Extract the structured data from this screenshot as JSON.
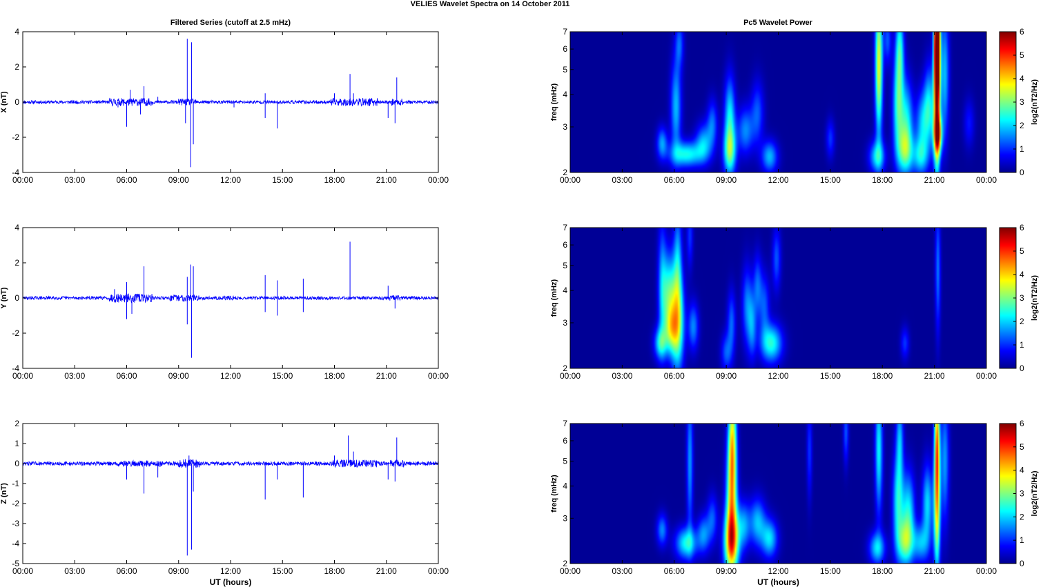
{
  "figure": {
    "title": "VELIES Wavelet Spectra on 14 October   2011",
    "left_column_title": "Filtered Series (cutoff at 2.5 mHz)",
    "right_column_title": "Pc5 Wavelet Power"
  },
  "colors": {
    "trace": "#0000ff",
    "spectrum_background": "#00008f",
    "axis": "#000000",
    "colormap": [
      "#00008f",
      "#0000ff",
      "#0080ff",
      "#00ffff",
      "#80ff80",
      "#ffff00",
      "#ff8000",
      "#ff0000",
      "#800000"
    ]
  },
  "chart_data": [
    {
      "type": "line",
      "panel": "series-x",
      "series": [
        {
          "values": [],
          "note_keys": "spikes"
        }
      ],
      "ylabel": "X (nT)",
      "xlabel": "",
      "xlim_hours": [
        0,
        24
      ],
      "ylim": [
        -4,
        4
      ],
      "xticks": [
        "00:00",
        "03:00",
        "06:00",
        "09:00",
        "12:00",
        "15:00",
        "18:00",
        "21:00",
        "00:00"
      ],
      "yticks": [
        "-4",
        "-2",
        "0",
        "2",
        "4"
      ],
      "ytick_values": [
        -4,
        -2,
        0,
        2,
        4
      ],
      "noise_amplitude": 0.06,
      "active_intervals": [
        [
          5.0,
          7.5,
          0.14
        ],
        [
          9.0,
          10.0,
          0.12
        ],
        [
          17.8,
          20.5,
          0.14
        ],
        [
          21.3,
          22.0,
          0.12
        ]
      ],
      "spikes": [
        {
          "t": 5.5,
          "v": -0.3
        },
        {
          "t": 6.0,
          "v": -1.4
        },
        {
          "t": 6.2,
          "v": 0.7
        },
        {
          "t": 6.8,
          "v": -0.7
        },
        {
          "t": 7.0,
          "v": 0.9
        },
        {
          "t": 7.8,
          "v": 0.3
        },
        {
          "t": 9.4,
          "v": -1.2
        },
        {
          "t": 9.5,
          "v": 3.6
        },
        {
          "t": 9.7,
          "v": -3.7
        },
        {
          "t": 9.75,
          "v": 3.4
        },
        {
          "t": 9.85,
          "v": -2.4
        },
        {
          "t": 12.2,
          "v": -0.3
        },
        {
          "t": 14.0,
          "v": 0.5
        },
        {
          "t": 14.0,
          "v": -0.9
        },
        {
          "t": 14.7,
          "v": -1.5
        },
        {
          "t": 18.0,
          "v": 0.5
        },
        {
          "t": 18.9,
          "v": 1.6
        },
        {
          "t": 19.1,
          "v": 0.5
        },
        {
          "t": 21.1,
          "v": -0.9
        },
        {
          "t": 21.6,
          "v": 1.4
        },
        {
          "t": 21.5,
          "v": -1.2
        }
      ]
    },
    {
      "type": "line",
      "panel": "series-y",
      "series": [
        {
          "values": []
        }
      ],
      "ylabel": "Y (nT)",
      "xlabel": "",
      "xlim_hours": [
        0,
        24
      ],
      "ylim": [
        -4,
        4
      ],
      "xticks": [
        "00:00",
        "03:00",
        "06:00",
        "09:00",
        "12:00",
        "15:00",
        "18:00",
        "21:00",
        "00:00"
      ],
      "yticks": [
        "-4",
        "-2",
        "0",
        "2",
        "4"
      ],
      "ytick_values": [
        -4,
        -2,
        0,
        2,
        4
      ],
      "noise_amplitude": 0.06,
      "active_intervals": [
        [
          5.0,
          7.5,
          0.16
        ],
        [
          8.5,
          10.2,
          0.12
        ],
        [
          11.5,
          12.4,
          0.08
        ],
        [
          21.2,
          21.8,
          0.1
        ]
      ],
      "spikes": [
        {
          "t": 5.3,
          "v": 0.5
        },
        {
          "t": 6.0,
          "v": 0.9
        },
        {
          "t": 6.0,
          "v": -1.2
        },
        {
          "t": 6.3,
          "v": -0.9
        },
        {
          "t": 7.0,
          "v": 1.8
        },
        {
          "t": 9.5,
          "v": 1.2
        },
        {
          "t": 9.5,
          "v": -1.5
        },
        {
          "t": 9.7,
          "v": 1.9
        },
        {
          "t": 9.75,
          "v": -3.4
        },
        {
          "t": 9.85,
          "v": 1.8
        },
        {
          "t": 14.0,
          "v": 1.3
        },
        {
          "t": 14.0,
          "v": -0.8
        },
        {
          "t": 14.7,
          "v": 1.0
        },
        {
          "t": 14.7,
          "v": -1.0
        },
        {
          "t": 16.2,
          "v": 1.1
        },
        {
          "t": 16.2,
          "v": -0.8
        },
        {
          "t": 18.9,
          "v": 3.2
        },
        {
          "t": 21.1,
          "v": 0.7
        },
        {
          "t": 21.5,
          "v": -0.6
        }
      ]
    },
    {
      "type": "line",
      "panel": "series-z",
      "series": [
        {
          "values": []
        }
      ],
      "ylabel": "Z (nT)",
      "xlabel": "UT (hours)",
      "xlim_hours": [
        0,
        24
      ],
      "ylim": [
        -5,
        2
      ],
      "xticks": [
        "00:00",
        "03:00",
        "06:00",
        "09:00",
        "12:00",
        "15:00",
        "18:00",
        "21:00",
        "00:00"
      ],
      "yticks": [
        "-5",
        "-4",
        "-3",
        "-2",
        "-1",
        "0",
        "1",
        "2"
      ],
      "ytick_values": [
        -5,
        -4,
        -3,
        -2,
        -1,
        0,
        1,
        2
      ],
      "noise_amplitude": 0.06,
      "active_intervals": [
        [
          5.5,
          8.0,
          0.1
        ],
        [
          9.0,
          10.2,
          0.14
        ],
        [
          17.8,
          20.5,
          0.12
        ],
        [
          21.2,
          22.0,
          0.12
        ]
      ],
      "spikes": [
        {
          "t": 6.0,
          "v": -0.8
        },
        {
          "t": 7.0,
          "v": -1.5
        },
        {
          "t": 7.8,
          "v": -0.7
        },
        {
          "t": 9.5,
          "v": -4.6
        },
        {
          "t": 9.6,
          "v": 0.4
        },
        {
          "t": 9.75,
          "v": -4.3
        },
        {
          "t": 9.85,
          "v": -1.4
        },
        {
          "t": 14.0,
          "v": -1.8
        },
        {
          "t": 14.7,
          "v": -0.8
        },
        {
          "t": 16.2,
          "v": -1.7
        },
        {
          "t": 18.0,
          "v": 0.4
        },
        {
          "t": 18.8,
          "v": 1.4
        },
        {
          "t": 19.1,
          "v": 0.6
        },
        {
          "t": 21.1,
          "v": -0.8
        },
        {
          "t": 21.6,
          "v": 1.3
        },
        {
          "t": 21.5,
          "v": -0.9
        }
      ]
    },
    {
      "type": "heatmap",
      "panel": "spectrum-x",
      "ylabel": "freq (mHz)",
      "xlabel": "",
      "colorbar_label": "log2(nT2/Hz)",
      "colorbar_ticks": [
        "0",
        "1",
        "2",
        "3",
        "4",
        "5",
        "6"
      ],
      "clim": [
        0,
        6
      ],
      "xlim_hours": [
        0,
        24
      ],
      "ylim_mHz": [
        2,
        7
      ],
      "yscale": "log",
      "xticks": [
        "00:00",
        "03:00",
        "06:00",
        "09:00",
        "12:00",
        "15:00",
        "18:00",
        "21:00",
        "00:00"
      ],
      "yticks": [
        "2",
        "3",
        "4",
        "5",
        "6",
        "7"
      ],
      "ytick_values": [
        2,
        3,
        4,
        5,
        6,
        7
      ],
      "blobs": [
        {
          "t": 5.3,
          "f": 2.6,
          "v": 1.6,
          "dt": 0.1,
          "df": 0.1
        },
        {
          "t": 6.1,
          "f": 3.6,
          "v": 1.8,
          "dt": 0.1,
          "df": 0.3
        },
        {
          "t": 6.3,
          "f": 6.3,
          "v": 1.2,
          "dt": 0.08,
          "df": 0.15
        },
        {
          "t": 6.7,
          "f": 2.35,
          "v": 2.3,
          "dt": 0.3,
          "df": 0.08
        },
        {
          "t": 7.7,
          "f": 2.6,
          "v": 1.7,
          "dt": 0.15,
          "df": 0.12
        },
        {
          "t": 8.2,
          "f": 3.1,
          "v": 1.3,
          "dt": 0.1,
          "df": 0.15
        },
        {
          "t": 9.2,
          "f": 2.4,
          "v": 2.4,
          "dt": 0.12,
          "df": 0.15
        },
        {
          "t": 9.2,
          "f": 3.3,
          "v": 2.1,
          "dt": 0.1,
          "df": 0.25
        },
        {
          "t": 10.1,
          "f": 2.9,
          "v": 1.5,
          "dt": 0.15,
          "df": 0.15
        },
        {
          "t": 10.8,
          "f": 3.4,
          "v": 1.2,
          "dt": 0.12,
          "df": 0.2
        },
        {
          "t": 11.5,
          "f": 2.3,
          "v": 1.8,
          "dt": 0.15,
          "df": 0.1
        },
        {
          "t": 15.0,
          "f": 2.7,
          "v": 1.0,
          "dt": 0.08,
          "df": 0.12
        },
        {
          "t": 17.7,
          "f": 2.3,
          "v": 2.0,
          "dt": 0.15,
          "df": 0.1
        },
        {
          "t": 17.8,
          "f": 5.2,
          "v": 3.6,
          "dt": 0.07,
          "df": 0.45
        },
        {
          "t": 18.3,
          "f": 6.5,
          "v": 1.2,
          "dt": 0.07,
          "df": 0.15
        },
        {
          "t": 18.9,
          "f": 3.6,
          "v": 2.3,
          "dt": 0.1,
          "df": 0.3
        },
        {
          "t": 19.0,
          "f": 6.0,
          "v": 2.2,
          "dt": 0.08,
          "df": 0.25
        },
        {
          "t": 19.3,
          "f": 2.4,
          "v": 2.2,
          "dt": 0.15,
          "df": 0.15
        },
        {
          "t": 19.4,
          "f": 3.2,
          "v": 2.0,
          "dt": 0.12,
          "df": 0.25
        },
        {
          "t": 20.2,
          "f": 2.3,
          "v": 1.8,
          "dt": 0.15,
          "df": 0.12
        },
        {
          "t": 20.3,
          "f": 3.1,
          "v": 1.7,
          "dt": 0.12,
          "df": 0.2
        },
        {
          "t": 20.7,
          "f": 3.6,
          "v": 2.0,
          "dt": 0.1,
          "df": 0.25
        },
        {
          "t": 21.15,
          "f": 4.4,
          "v": 5.2,
          "dt": 0.06,
          "df": 0.55
        },
        {
          "t": 21.15,
          "f": 6.5,
          "v": 5.8,
          "dt": 0.05,
          "df": 0.3
        },
        {
          "t": 21.2,
          "f": 2.8,
          "v": 3.4,
          "dt": 0.08,
          "df": 0.12
        },
        {
          "t": 21.6,
          "f": 4.8,
          "v": 1.8,
          "dt": 0.08,
          "df": 0.4
        },
        {
          "t": 23.0,
          "f": 3.1,
          "v": 0.8,
          "dt": 0.1,
          "df": 0.15
        }
      ]
    },
    {
      "type": "heatmap",
      "panel": "spectrum-y",
      "ylabel": "freq (mHz)",
      "xlabel": "",
      "colorbar_label": "log2(nT2/Hz)",
      "colorbar_ticks": [
        "0",
        "1",
        "2",
        "3",
        "4",
        "5",
        "6"
      ],
      "clim": [
        0,
        6
      ],
      "xlim_hours": [
        0,
        24
      ],
      "ylim_mHz": [
        2,
        7
      ],
      "yscale": "log",
      "xticks": [
        "00:00",
        "03:00",
        "06:00",
        "09:00",
        "12:00",
        "15:00",
        "18:00",
        "21:00",
        "00:00"
      ],
      "yticks": [
        "2",
        "3",
        "4",
        "5",
        "6",
        "7"
      ],
      "ytick_values": [
        2,
        3,
        4,
        5,
        6,
        7
      ],
      "blobs": [
        {
          "t": 5.2,
          "f": 2.5,
          "v": 2.0,
          "dt": 0.12,
          "df": 0.1
        },
        {
          "t": 5.3,
          "f": 4.2,
          "v": 1.5,
          "dt": 0.08,
          "df": 0.4
        },
        {
          "t": 5.7,
          "f": 3.9,
          "v": 2.4,
          "dt": 0.12,
          "df": 0.25
        },
        {
          "t": 5.8,
          "f": 2.8,
          "v": 2.0,
          "dt": 0.12,
          "df": 0.15
        },
        {
          "t": 6.2,
          "f": 3.0,
          "v": 3.0,
          "dt": 0.12,
          "df": 0.3
        },
        {
          "t": 6.2,
          "f": 5.2,
          "v": 1.6,
          "dt": 0.08,
          "df": 0.35
        },
        {
          "t": 6.9,
          "f": 6.5,
          "v": 1.0,
          "dt": 0.06,
          "df": 0.2
        },
        {
          "t": 7.1,
          "f": 2.9,
          "v": 1.5,
          "dt": 0.1,
          "df": 0.15
        },
        {
          "t": 9.0,
          "f": 2.3,
          "v": 1.2,
          "dt": 0.1,
          "df": 0.12
        },
        {
          "t": 9.3,
          "f": 3.0,
          "v": 1.3,
          "dt": 0.08,
          "df": 0.2
        },
        {
          "t": 10.2,
          "f": 3.5,
          "v": 1.4,
          "dt": 0.1,
          "df": 0.25
        },
        {
          "t": 10.5,
          "f": 2.9,
          "v": 1.3,
          "dt": 0.08,
          "df": 0.2
        },
        {
          "t": 10.8,
          "f": 4.2,
          "v": 1.2,
          "dt": 0.08,
          "df": 0.2
        },
        {
          "t": 11.2,
          "f": 3.5,
          "v": 1.2,
          "dt": 0.1,
          "df": 0.2
        },
        {
          "t": 11.6,
          "f": 2.5,
          "v": 2.4,
          "dt": 0.2,
          "df": 0.12
        },
        {
          "t": 11.9,
          "f": 5.3,
          "v": 1.2,
          "dt": 0.08,
          "df": 0.2
        },
        {
          "t": 19.3,
          "f": 2.5,
          "v": 1.0,
          "dt": 0.08,
          "df": 0.1
        },
        {
          "t": 21.2,
          "f": 4.8,
          "v": 1.4,
          "dt": 0.05,
          "df": 0.4
        }
      ]
    },
    {
      "type": "heatmap",
      "panel": "spectrum-z",
      "ylabel": "freq (mHz)",
      "xlabel": "UT (hours)",
      "colorbar_label": "log2(nT2/Hz)",
      "colorbar_ticks": [
        "0",
        "1",
        "2",
        "3",
        "4",
        "5",
        "6"
      ],
      "clim": [
        0,
        6
      ],
      "xlim_hours": [
        0,
        24
      ],
      "ylim_mHz": [
        2,
        7
      ],
      "yscale": "log",
      "xticks": [
        "00:00",
        "03:00",
        "06:00",
        "09:00",
        "12:00",
        "15:00",
        "18:00",
        "21:00",
        "00:00"
      ],
      "yticks": [
        "2",
        "3",
        "4",
        "5",
        "6",
        "7"
      ],
      "ytick_values": [
        2,
        3,
        4,
        5,
        6,
        7
      ],
      "blobs": [
        {
          "t": 5.3,
          "f": 2.7,
          "v": 1.5,
          "dt": 0.1,
          "df": 0.1
        },
        {
          "t": 6.7,
          "f": 2.4,
          "v": 2.3,
          "dt": 0.2,
          "df": 0.1
        },
        {
          "t": 6.9,
          "f": 5.0,
          "v": 1.6,
          "dt": 0.06,
          "df": 0.45
        },
        {
          "t": 7.7,
          "f": 2.6,
          "v": 1.5,
          "dt": 0.12,
          "df": 0.12
        },
        {
          "t": 8.2,
          "f": 3.0,
          "v": 1.2,
          "dt": 0.1,
          "df": 0.15
        },
        {
          "t": 9.3,
          "f": 2.4,
          "v": 3.8,
          "dt": 0.14,
          "df": 0.2
        },
        {
          "t": 9.3,
          "f": 3.5,
          "v": 3.0,
          "dt": 0.1,
          "df": 0.35
        },
        {
          "t": 9.35,
          "f": 6.0,
          "v": 3.3,
          "dt": 0.08,
          "df": 0.35
        },
        {
          "t": 10.0,
          "f": 2.8,
          "v": 1.6,
          "dt": 0.12,
          "df": 0.15
        },
        {
          "t": 10.8,
          "f": 2.9,
          "v": 1.8,
          "dt": 0.15,
          "df": 0.15
        },
        {
          "t": 11.5,
          "f": 2.5,
          "v": 2.0,
          "dt": 0.15,
          "df": 0.12
        },
        {
          "t": 13.8,
          "f": 5.5,
          "v": 1.0,
          "dt": 0.05,
          "df": 0.3
        },
        {
          "t": 15.9,
          "f": 6.5,
          "v": 1.2,
          "dt": 0.05,
          "df": 0.2
        },
        {
          "t": 17.7,
          "f": 2.3,
          "v": 2.0,
          "dt": 0.15,
          "df": 0.1
        },
        {
          "t": 17.8,
          "f": 5.5,
          "v": 2.2,
          "dt": 0.07,
          "df": 0.4
        },
        {
          "t": 18.9,
          "f": 3.5,
          "v": 2.2,
          "dt": 0.1,
          "df": 0.3
        },
        {
          "t": 19.0,
          "f": 6.2,
          "v": 1.6,
          "dt": 0.07,
          "df": 0.25
        },
        {
          "t": 19.3,
          "f": 2.4,
          "v": 2.3,
          "dt": 0.15,
          "df": 0.15
        },
        {
          "t": 19.5,
          "f": 3.2,
          "v": 2.1,
          "dt": 0.12,
          "df": 0.25
        },
        {
          "t": 20.2,
          "f": 2.4,
          "v": 1.7,
          "dt": 0.15,
          "df": 0.12
        },
        {
          "t": 20.6,
          "f": 3.4,
          "v": 2.0,
          "dt": 0.1,
          "df": 0.25
        },
        {
          "t": 21.15,
          "f": 3.2,
          "v": 3.4,
          "dt": 0.06,
          "df": 0.4
        },
        {
          "t": 21.15,
          "f": 6.0,
          "v": 3.8,
          "dt": 0.05,
          "df": 0.35
        },
        {
          "t": 21.6,
          "f": 5.0,
          "v": 1.6,
          "dt": 0.08,
          "df": 0.4
        }
      ]
    }
  ]
}
